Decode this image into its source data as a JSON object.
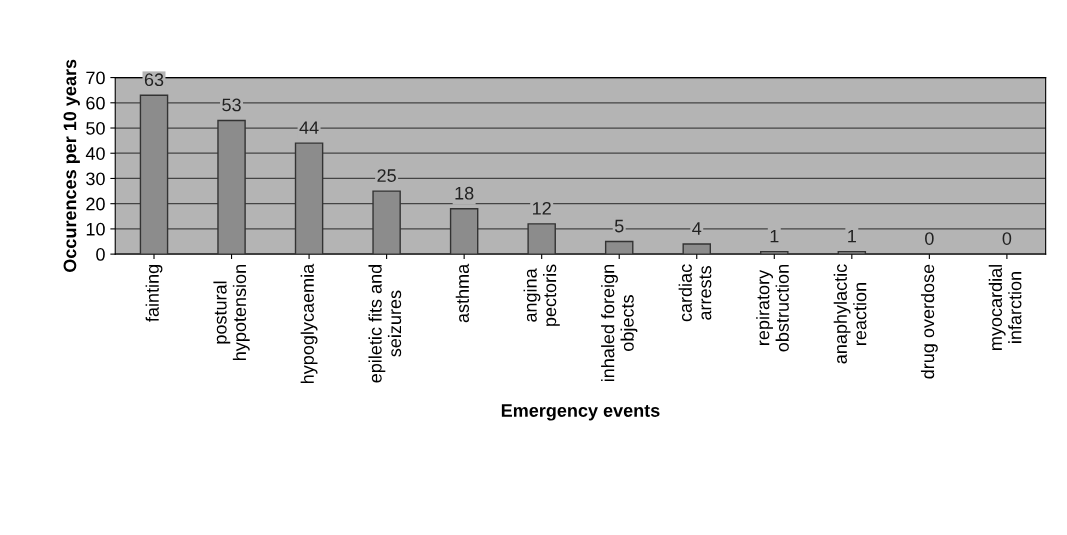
{
  "chart_data": {
    "type": "bar",
    "xlabel": "Emergency events",
    "ylabel": "Occurences per 10 years",
    "categories": [
      "fainting",
      "postural\nhypotension",
      "hypoglycaemia",
      "epiletic fits and\nseizures",
      "asthma",
      "angina\npectoris",
      "inhaled foreign\nobjects",
      "cardiac\narrests",
      "repiratory\nobstruction",
      "anaphylactic\nreaction",
      "drug overdose",
      "myocardial\ninfarction"
    ],
    "values": [
      63,
      53,
      44,
      25,
      18,
      12,
      5,
      4,
      1,
      1,
      0,
      0
    ],
    "color": "#8c8c8c",
    "ylim": [
      0,
      70
    ],
    "yticks": [
      0,
      10,
      20,
      30,
      40,
      50,
      60,
      70
    ],
    "grid": "y",
    "data_labels": true,
    "legend": false
  }
}
